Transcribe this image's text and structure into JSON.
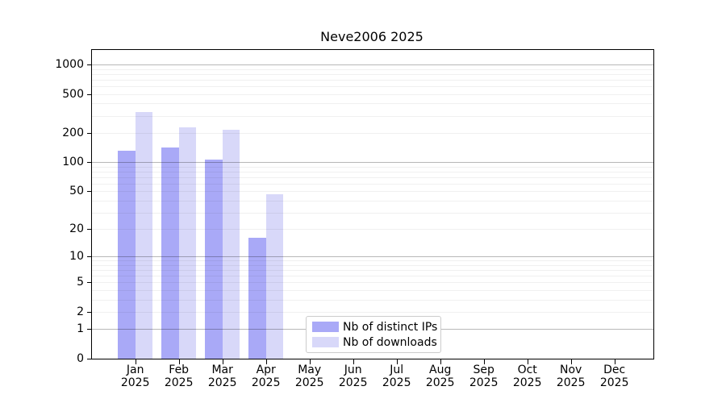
{
  "chart_data": {
    "type": "bar",
    "title": "Neve2006 2025",
    "scale": "log1p",
    "categories": [
      "Jan",
      "Feb",
      "Mar",
      "Apr",
      "May",
      "Jun",
      "Jul",
      "Aug",
      "Sep",
      "Oct",
      "Nov",
      "Dec"
    ],
    "category_year": "2025",
    "series": [
      {
        "name": "Nb of distinct IPs",
        "color": "#a9a9f7",
        "values": [
          131,
          141,
          106,
          16,
          0,
          0,
          0,
          0,
          0,
          0,
          0,
          0
        ]
      },
      {
        "name": "Nb of downloads",
        "color": "#d8d8f9",
        "values": [
          330,
          229,
          215,
          47,
          0,
          0,
          0,
          0,
          0,
          0,
          0,
          0
        ]
      }
    ],
    "yticks": [
      0,
      1,
      2,
      5,
      10,
      20,
      50,
      100,
      200,
      500,
      1000
    ],
    "ylim": [
      0,
      1407
    ],
    "grid": {
      "major_ticks": [
        1,
        10,
        100,
        1000
      ],
      "minor": true,
      "grid_on": true,
      "grid_above_bars": true
    },
    "legend_position": "inside-bottom-center",
    "xlabel": "",
    "ylabel": ""
  },
  "colors": {
    "background": "#ffffff",
    "frame": "#000000",
    "legend_border": "#cccccc",
    "bar_distinct_ips": "#a9a9f7",
    "bar_downloads": "#d8d8f9"
  }
}
